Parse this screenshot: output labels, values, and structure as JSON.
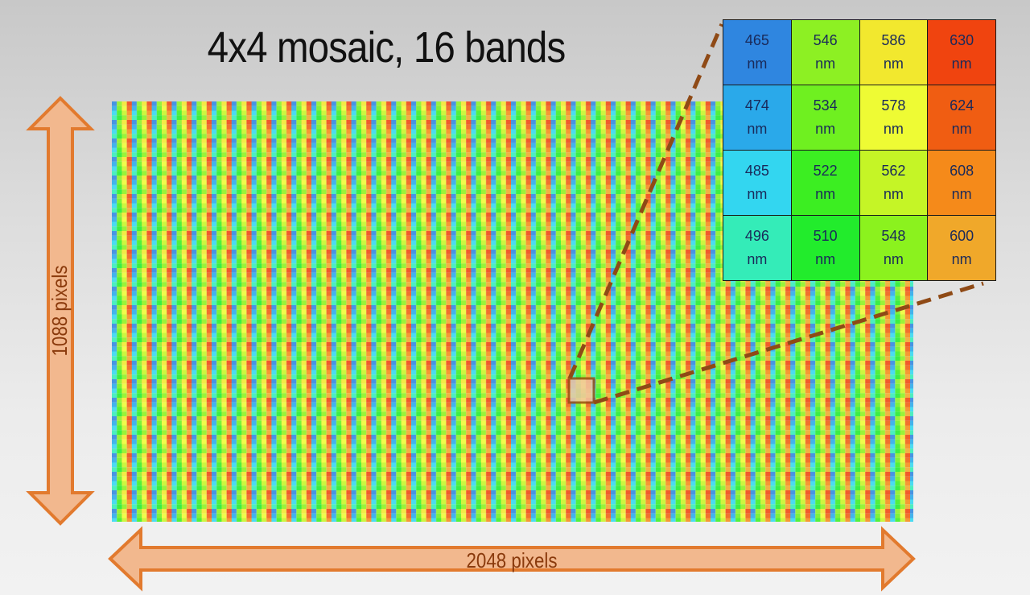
{
  "title": "4x4 mosaic, 16 bands",
  "dimensions": {
    "height_label": "1088 pixels",
    "width_label": "2048 pixels"
  },
  "band_table": {
    "unit": "nm",
    "rows": [
      [
        {
          "wavelength": "465",
          "color": "#2f86e0"
        },
        {
          "wavelength": "546",
          "color": "#8df023"
        },
        {
          "wavelength": "586",
          "color": "#f2e82e"
        },
        {
          "wavelength": "630",
          "color": "#f0440f"
        }
      ],
      [
        {
          "wavelength": "474",
          "color": "#2aa9ea"
        },
        {
          "wavelength": "534",
          "color": "#6ff020"
        },
        {
          "wavelength": "578",
          "color": "#eefb34"
        },
        {
          "wavelength": "624",
          "color": "#f05d12"
        }
      ],
      [
        {
          "wavelength": "485",
          "color": "#33d6f0"
        },
        {
          "wavelength": "522",
          "color": "#3cee22"
        },
        {
          "wavelength": "562",
          "color": "#c5f526"
        },
        {
          "wavelength": "608",
          "color": "#f58a1a"
        }
      ],
      [
        {
          "wavelength": "496",
          "color": "#34ecb8"
        },
        {
          "wavelength": "510",
          "color": "#22ec2c"
        },
        {
          "wavelength": "548",
          "color": "#8bf21e"
        },
        {
          "wavelength": "600",
          "color": "#f0a82a"
        }
      ]
    ]
  },
  "colors": {
    "arrow_fill": "#f2b88e",
    "arrow_stroke": "#e27a2e",
    "callout": "#8f4a16"
  }
}
